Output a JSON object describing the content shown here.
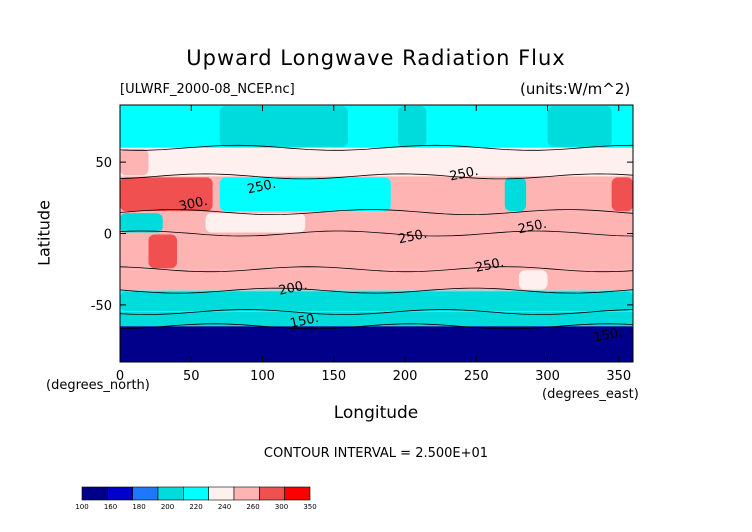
{
  "chart_data": {
    "type": "heatmap",
    "title": "Upward Longwave Radiation Flux",
    "file_label": "[ULWRF_2000-08_NCEP.nc]",
    "units_label": "(units:W/m^2)",
    "xlabel": "Longitude",
    "ylabel": "Latitude",
    "x_unit": "(degrees_north)",
    "x_unit_east": "(degrees_east)",
    "x_ticks": [
      "0",
      "50",
      "100",
      "150",
      "200",
      "250",
      "300",
      "350"
    ],
    "y_ticks": [
      "50",
      "0",
      "-50"
    ],
    "xlim": [
      0,
      360
    ],
    "ylim": [
      -90,
      90
    ],
    "contour_interval": "CONTOUR INTERVAL = 2.500E+01",
    "colorbar": {
      "labels": [
        "100",
        "160",
        "180",
        "200",
        "220",
        "240",
        "260",
        "300",
        "350"
      ],
      "colors": [
        "#00008b",
        "#0000cd",
        "#1e78ff",
        "#00dcdc",
        "#00ffff",
        "#fff0f0",
        "#ffb4b4",
        "#f05050",
        "#ff0000"
      ]
    },
    "contour_labels": [
      {
        "lon": 232,
        "lat": 37,
        "text": "250."
      },
      {
        "lon": 90,
        "lat": 28,
        "text": "250."
      },
      {
        "lon": 42,
        "lat": 16,
        "text": "300."
      },
      {
        "lon": 196,
        "lat": -7,
        "text": "250."
      },
      {
        "lon": 280,
        "lat": 0,
        "text": "250."
      },
      {
        "lon": 250,
        "lat": -27,
        "text": "250."
      },
      {
        "lon": 112,
        "lat": -43,
        "text": "200."
      },
      {
        "lon": 120,
        "lat": -66,
        "text": "150."
      },
      {
        "lon": 333,
        "lat": -76,
        "text": "150."
      }
    ],
    "field": [
      {
        "lat_range": [
          60,
          90
        ],
        "base": 230,
        "regions": [
          {
            "lon": [
              70,
              160
            ],
            "value": 215
          },
          {
            "lon": [
              195,
              215
            ],
            "value": 215
          },
          {
            "lon": [
              300,
              345
            ],
            "value": 215
          }
        ]
      },
      {
        "lat_range": [
          40,
          60
        ],
        "base": 245,
        "regions": [
          {
            "lon": [
              0,
              20
            ],
            "value": 265
          },
          {
            "lon": [
              60,
              100
            ],
            "value": 240
          },
          {
            "lon": [
              100,
              180
            ],
            "value": 240
          }
        ]
      },
      {
        "lat_range": [
          15,
          40
        ],
        "base": 275,
        "regions": [
          {
            "lon": [
              0,
              65
            ],
            "value": 310
          },
          {
            "lon": [
              70,
              190
            ],
            "value": 230
          },
          {
            "lon": [
              220,
              300
            ],
            "value": 280
          },
          {
            "lon": [
              270,
              285
            ],
            "value": 205
          },
          {
            "lon": [
              345,
              360
            ],
            "value": 300
          }
        ]
      },
      {
        "lat_range": [
          0,
          15
        ],
        "base": 275,
        "regions": [
          {
            "lon": [
              0,
              30
            ],
            "value": 215
          },
          {
            "lon": [
              60,
              130
            ],
            "value": 240
          },
          {
            "lon": [
              210,
              270
            ],
            "value": 265
          }
        ]
      },
      {
        "lat_range": [
          -25,
          0
        ],
        "base": 280,
        "regions": [
          {
            "lon": [
              20,
              40
            ],
            "value": 300
          }
        ]
      },
      {
        "lat_range": [
          -40,
          -25
        ],
        "base": 265,
        "regions": [
          {
            "lon": [
              280,
              300
            ],
            "value": 240
          }
        ]
      },
      {
        "lat_range": [
          -55,
          -40
        ],
        "base": 230,
        "regions": [
          {
            "lon": [
              0,
              360
            ],
            "value": 215
          }
        ]
      },
      {
        "lat_range": [
          -65,
          -55
        ],
        "base": 200,
        "regions": []
      },
      {
        "lat_range": [
          -90,
          -65
        ],
        "base": 150,
        "regions": [
          {
            "lon": [
              0,
              360
            ],
            "value": 130
          }
        ]
      }
    ]
  }
}
